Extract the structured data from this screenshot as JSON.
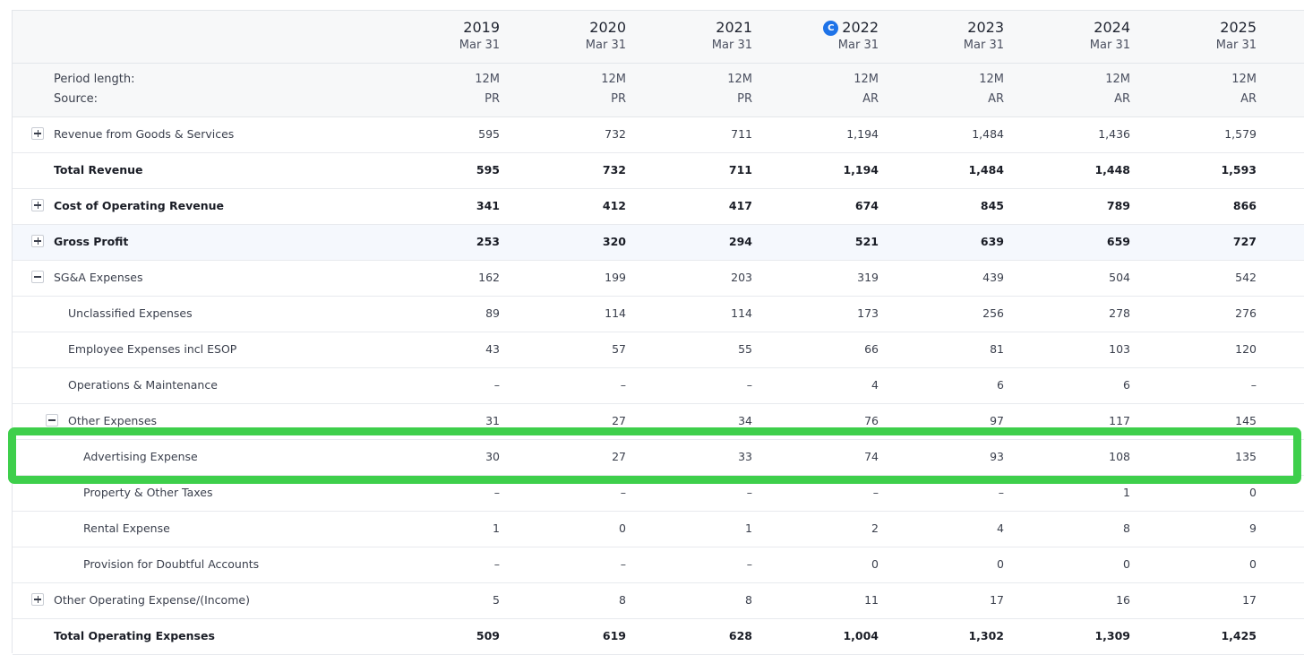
{
  "header": {
    "columns": [
      {
        "year": "2019",
        "date": "Mar 31",
        "period": "12M",
        "source": "PR",
        "current": false
      },
      {
        "year": "2020",
        "date": "Mar 31",
        "period": "12M",
        "source": "PR",
        "current": false
      },
      {
        "year": "2021",
        "date": "Mar 31",
        "period": "12M",
        "source": "PR",
        "current": false
      },
      {
        "year": "2022",
        "date": "Mar 31",
        "period": "12M",
        "source": "AR",
        "current": true
      },
      {
        "year": "2023",
        "date": "Mar 31",
        "period": "12M",
        "source": "AR",
        "current": false
      },
      {
        "year": "2024",
        "date": "Mar 31",
        "period": "12M",
        "source": "AR",
        "current": false
      },
      {
        "year": "2025",
        "date": "Mar 31",
        "period": "12M",
        "source": "AR",
        "current": false
      }
    ],
    "current_badge": "C",
    "period_label": "Period length:",
    "source_label": "Source:"
  },
  "rows": [
    {
      "label": "Revenue from Goods & Services",
      "values": [
        "595",
        "732",
        "711",
        "1,194",
        "1,484",
        "1,436",
        "1,579"
      ],
      "level": 0,
      "toggle": "plus",
      "bold": false,
      "highlight": false
    },
    {
      "label": "Total Revenue",
      "values": [
        "595",
        "732",
        "711",
        "1,194",
        "1,484",
        "1,448",
        "1,593"
      ],
      "level": 0,
      "toggle": "none",
      "bold": true,
      "highlight": false
    },
    {
      "label": "Cost of Operating Revenue",
      "values": [
        "341",
        "412",
        "417",
        "674",
        "845",
        "789",
        "866"
      ],
      "level": 0,
      "toggle": "plus",
      "bold": true,
      "highlight": false
    },
    {
      "label": "Gross Profit",
      "values": [
        "253",
        "320",
        "294",
        "521",
        "639",
        "659",
        "727"
      ],
      "level": 0,
      "toggle": "plus",
      "bold": true,
      "highlight": true
    },
    {
      "label": "SG&A Expenses",
      "values": [
        "162",
        "199",
        "203",
        "319",
        "439",
        "504",
        "542"
      ],
      "level": 0,
      "toggle": "minus",
      "bold": false,
      "highlight": false
    },
    {
      "label": "Unclassified Expenses",
      "values": [
        "89",
        "114",
        "114",
        "173",
        "256",
        "278",
        "276"
      ],
      "level": 1,
      "toggle": "none",
      "bold": false,
      "highlight": false
    },
    {
      "label": "Employee Expenses incl ESOP",
      "values": [
        "43",
        "57",
        "55",
        "66",
        "81",
        "103",
        "120"
      ],
      "level": 1,
      "toggle": "none",
      "bold": false,
      "highlight": false
    },
    {
      "label": "Operations & Maintenance",
      "values": [
        "–",
        "–",
        "–",
        "4",
        "6",
        "6",
        "–"
      ],
      "level": 1,
      "toggle": "none",
      "bold": false,
      "highlight": false
    },
    {
      "label": "Other Expenses",
      "values": [
        "31",
        "27",
        "34",
        "76",
        "97",
        "117",
        "145"
      ],
      "level": 1,
      "toggle": "minus",
      "bold": false,
      "highlight": false
    },
    {
      "label": "Advertising Expense",
      "values": [
        "30",
        "27",
        "33",
        "74",
        "93",
        "108",
        "135"
      ],
      "level": 2,
      "toggle": "none",
      "bold": false,
      "highlight": false
    },
    {
      "label": "Property & Other Taxes",
      "values": [
        "–",
        "–",
        "–",
        "–",
        "–",
        "1",
        "0"
      ],
      "level": 2,
      "toggle": "none",
      "bold": false,
      "highlight": false
    },
    {
      "label": "Rental Expense",
      "values": [
        "1",
        "0",
        "1",
        "2",
        "4",
        "8",
        "9"
      ],
      "level": 2,
      "toggle": "none",
      "bold": false,
      "highlight": false
    },
    {
      "label": "Provision for Doubtful Accounts",
      "values": [
        "–",
        "–",
        "–",
        "0",
        "0",
        "0",
        "0"
      ],
      "level": 2,
      "toggle": "none",
      "bold": false,
      "highlight": false
    },
    {
      "label": "Other Operating Expense/(Income)",
      "values": [
        "5",
        "8",
        "8",
        "11",
        "17",
        "16",
        "17"
      ],
      "level": 0,
      "toggle": "plus",
      "bold": false,
      "highlight": false
    },
    {
      "label": "Total Operating Expenses",
      "values": [
        "509",
        "619",
        "628",
        "1,004",
        "1,302",
        "1,309",
        "1,425"
      ],
      "level": 0,
      "toggle": "none",
      "bold": true,
      "highlight": false
    }
  ],
  "annotation": {
    "highlighted_row": "Advertising Expense",
    "frame_color": "#3ecf4b"
  },
  "colors": {
    "current_badge": "#1e73e8",
    "row_highlight": "#f5f8fd"
  }
}
